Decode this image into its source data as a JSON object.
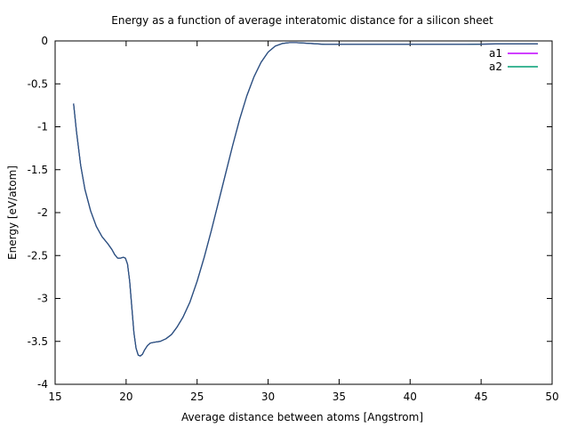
{
  "chart_data": {
    "type": "line",
    "title": "Energy as a function of average interatomic distance for a silicon sheet",
    "xlabel": "Average distance between atoms [Angstrom]",
    "ylabel": "Energy [eV/atom]",
    "xlim": [
      15,
      50
    ],
    "ylim": [
      -4,
      0
    ],
    "xticks": [
      15,
      20,
      25,
      30,
      35,
      40,
      45,
      50
    ],
    "yticks": [
      0,
      -0.5,
      -1,
      -1.5,
      -2,
      -2.5,
      -3,
      -3.5,
      -4
    ],
    "xtick_labels": [
      "15",
      "20",
      "25",
      "30",
      "35",
      "40",
      "45",
      "50"
    ],
    "ytick_labels": [
      "0",
      "-0.5",
      "-1",
      "-1.5",
      "-2",
      "-2.5",
      "-3",
      "-3.5",
      "-4"
    ],
    "grid": false,
    "legend_position": "top-right",
    "series": [
      {
        "name": "a1",
        "color": "#c000ff",
        "x": [
          16.3,
          16.5,
          16.8,
          17.1,
          17.5,
          17.9,
          18.3,
          18.7,
          19.0,
          19.2,
          19.4,
          19.6,
          19.8,
          19.95,
          20.1,
          20.25,
          20.4,
          20.55,
          20.7,
          20.85,
          21.0,
          21.15,
          21.3,
          21.5,
          21.7,
          22.0,
          22.4,
          22.8,
          23.2,
          23.6,
          24.0,
          24.5,
          25.0,
          25.5,
          26.0,
          26.5,
          27.0,
          27.5,
          28.0,
          28.5,
          29.0,
          29.5,
          30.0,
          30.5,
          31.0,
          31.5,
          32.0,
          33.0,
          34.0,
          35.0,
          36.0,
          38.0,
          40.0,
          42.0,
          44.0,
          46.0,
          48.0,
          49.0
        ],
        "y": [
          -0.73,
          -1.05,
          -1.45,
          -1.73,
          -1.98,
          -2.16,
          -2.28,
          -2.36,
          -2.43,
          -2.49,
          -2.53,
          -2.53,
          -2.52,
          -2.53,
          -2.6,
          -2.8,
          -3.1,
          -3.4,
          -3.58,
          -3.66,
          -3.67,
          -3.65,
          -3.6,
          -3.55,
          -3.52,
          -3.51,
          -3.5,
          -3.47,
          -3.42,
          -3.33,
          -3.22,
          -3.04,
          -2.8,
          -2.52,
          -2.21,
          -1.88,
          -1.55,
          -1.22,
          -0.91,
          -0.64,
          -0.42,
          -0.25,
          -0.13,
          -0.06,
          -0.03,
          -0.02,
          -0.02,
          -0.03,
          -0.04,
          -0.04,
          -0.04,
          -0.04,
          -0.04,
          -0.04,
          -0.04,
          -0.035,
          -0.035,
          -0.035
        ]
      },
      {
        "name": "a2",
        "color": "#009e73",
        "x": [
          16.3,
          16.5,
          16.8,
          17.1,
          17.5,
          17.9,
          18.3,
          18.7,
          19.0,
          19.2,
          19.4,
          19.6,
          19.8,
          19.95,
          20.1,
          20.25,
          20.4,
          20.55,
          20.7,
          20.85,
          21.0,
          21.15,
          21.3,
          21.5,
          21.7,
          22.0,
          22.4,
          22.8,
          23.2,
          23.6,
          24.0,
          24.5,
          25.0,
          25.5,
          26.0,
          26.5,
          27.0,
          27.5,
          28.0,
          28.5,
          29.0,
          29.5,
          30.0,
          30.5,
          31.0,
          31.5,
          32.0,
          33.0,
          34.0,
          35.0,
          36.0,
          38.0,
          40.0,
          42.0,
          44.0,
          46.0,
          48.0,
          49.0
        ],
        "y": [
          -0.73,
          -1.05,
          -1.45,
          -1.73,
          -1.98,
          -2.16,
          -2.28,
          -2.36,
          -2.43,
          -2.49,
          -2.53,
          -2.53,
          -2.52,
          -2.53,
          -2.6,
          -2.8,
          -3.1,
          -3.4,
          -3.58,
          -3.66,
          -3.67,
          -3.65,
          -3.6,
          -3.55,
          -3.52,
          -3.51,
          -3.5,
          -3.47,
          -3.42,
          -3.33,
          -3.22,
          -3.04,
          -2.8,
          -2.52,
          -2.21,
          -1.88,
          -1.55,
          -1.22,
          -0.91,
          -0.64,
          -0.42,
          -0.25,
          -0.13,
          -0.06,
          -0.03,
          -0.02,
          -0.02,
          -0.03,
          -0.04,
          -0.04,
          -0.04,
          -0.04,
          -0.04,
          -0.04,
          -0.04,
          -0.035,
          -0.035,
          -0.035
        ]
      }
    ],
    "overlay_color": "#2f4f7f"
  }
}
